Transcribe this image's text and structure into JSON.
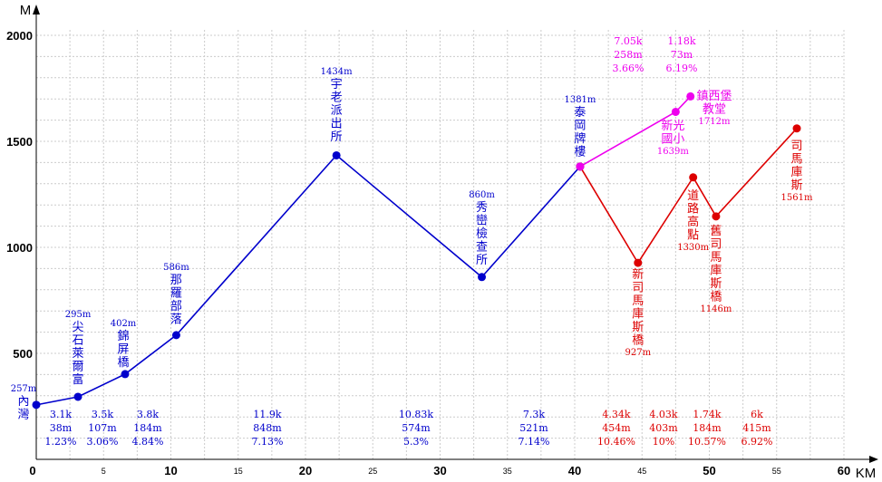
{
  "chart_data": {
    "type": "line",
    "axes": {
      "x_unit": "KM",
      "y_unit": "M",
      "xlim": [
        0,
        60
      ],
      "ylim": [
        0,
        2000
      ],
      "x_major_ticks": [
        "0",
        "10",
        "20",
        "30",
        "40",
        "50",
        "60"
      ],
      "x_minor_ticks": [
        "5",
        "15",
        "25",
        "35",
        "45",
        "55"
      ],
      "y_ticks": [
        "500",
        "1000",
        "1500",
        "2000"
      ],
      "grid": true
    },
    "colors": {
      "main": "#0000cc",
      "red": "#dd0000",
      "magenta": "#ee00ee",
      "grid": "#cccccc"
    },
    "series": [
      {
        "id": "main",
        "color": "#0000cc",
        "points": [
          {
            "x": 0,
            "y": 257,
            "elev": "257m",
            "name": "內灣"
          },
          {
            "x": 3.1,
            "y": 295,
            "elev": "295m",
            "name": "尖石萊爾富"
          },
          {
            "x": 6.6,
            "y": 402,
            "elev": "402m",
            "name": "錦屏橋"
          },
          {
            "x": 10.4,
            "y": 586,
            "elev": "586m",
            "name": "那羅部落"
          },
          {
            "x": 22.3,
            "y": 1434,
            "elev": "1434m",
            "name": "宇老派出所"
          },
          {
            "x": 33.1,
            "y": 860,
            "elev": "860m",
            "name": "秀巒檢查所"
          },
          {
            "x": 40.4,
            "y": 1381,
            "elev": "1381m",
            "name": "泰岡牌樓"
          }
        ]
      },
      {
        "id": "red",
        "color": "#dd0000",
        "points": [
          {
            "x": 40.4,
            "y": 1381
          },
          {
            "x": 44.7,
            "y": 927,
            "elev": "927m",
            "name": "新司馬庫斯橋"
          },
          {
            "x": 48.8,
            "y": 1330,
            "elev": "1330m",
            "name": "道路高點"
          },
          {
            "x": 50.5,
            "y": 1146,
            "elev": "1146m",
            "name": "舊司馬庫斯橋"
          },
          {
            "x": 56.5,
            "y": 1561,
            "elev": "1561m",
            "name": "司馬庫斯"
          }
        ]
      },
      {
        "id": "magenta",
        "color": "#ee00ee",
        "points": [
          {
            "x": 40.4,
            "y": 1381
          },
          {
            "x": 47.5,
            "y": 1639,
            "elev": "1639m",
            "name": "新光國小"
          },
          {
            "x": 48.6,
            "y": 1712,
            "elev": "1712m",
            "name": "鎮西堡教堂"
          }
        ]
      }
    ],
    "segments": [
      {
        "dist": "3.1k",
        "gain": "38m",
        "grade": "1.23%",
        "color": "#0000cc"
      },
      {
        "dist": "3.5k",
        "gain": "107m",
        "grade": "3.06%",
        "color": "#0000cc"
      },
      {
        "dist": "3.8k",
        "gain": "184m",
        "grade": "4.84%",
        "color": "#0000cc"
      },
      {
        "dist": "11.9k",
        "gain": "848m",
        "grade": "7.13%",
        "color": "#0000cc"
      },
      {
        "dist": "10.83k",
        "gain": "574m",
        "grade": "5.3%",
        "color": "#0000cc"
      },
      {
        "dist": "7.3k",
        "gain": "521m",
        "grade": "7.14%",
        "color": "#0000cc"
      },
      {
        "dist": "4.34k",
        "gain": "454m",
        "grade": "10.46%",
        "color": "#dd0000"
      },
      {
        "dist": "4.03k",
        "gain": "403m",
        "grade": "10%",
        "color": "#dd0000"
      },
      {
        "dist": "1.74k",
        "gain": "184m",
        "grade": "10.57%",
        "color": "#dd0000"
      },
      {
        "dist": "6k",
        "gain": "415m",
        "grade": "6.92%",
        "color": "#dd0000"
      },
      {
        "dist": "7.05k",
        "gain": "258m",
        "grade": "3.66%",
        "color": "#ee00ee"
      },
      {
        "dist": "1.18k",
        "gain": "73m",
        "grade": "6.19%",
        "color": "#ee00ee"
      }
    ]
  }
}
